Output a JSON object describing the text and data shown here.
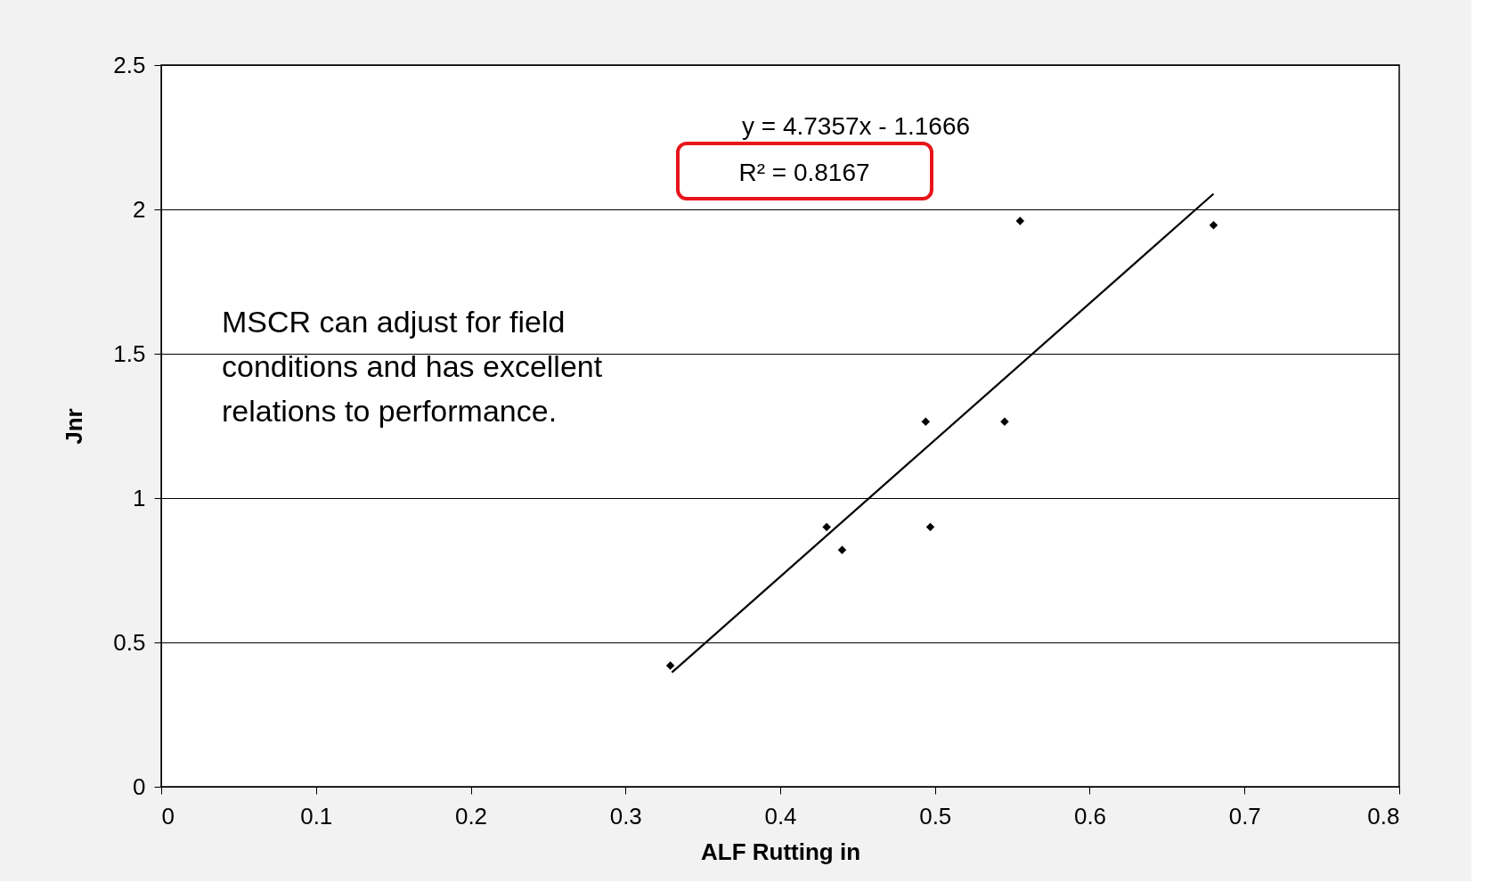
{
  "chart_data": {
    "type": "scatter",
    "xlabel": "ALF Rutting in",
    "ylabel": "Jnr",
    "xlim": [
      0,
      0.8
    ],
    "xticks": [
      0,
      0.1,
      0.2,
      0.3,
      0.4,
      0.5,
      0.6,
      0.7,
      0.8
    ],
    "ylim": [
      0,
      2.5
    ],
    "yticks": [
      0,
      0.5,
      1,
      1.5,
      2,
      2.5
    ],
    "grid": "y",
    "series": [
      {
        "color": "#000000",
        "marker": "diamond",
        "x": [
          0.329,
          0.43,
          0.44,
          0.494,
          0.497,
          0.545,
          0.555,
          0.68
        ],
        "values": [
          0.42,
          0.9,
          0.82,
          1.265,
          0.9,
          1.265,
          1.96,
          1.945
        ]
      },
      {
        "type": "line",
        "color": "#000000",
        "x": [
          0.33,
          0.68
        ],
        "values": [
          0.396,
          2.054
        ]
      }
    ],
    "annotations": [
      "y = 4.7357x - 1.1666",
      "R² = 0.8167",
      "MSCR can adjust for field\nconditions and has excellent\nrelations to performance."
    ]
  }
}
